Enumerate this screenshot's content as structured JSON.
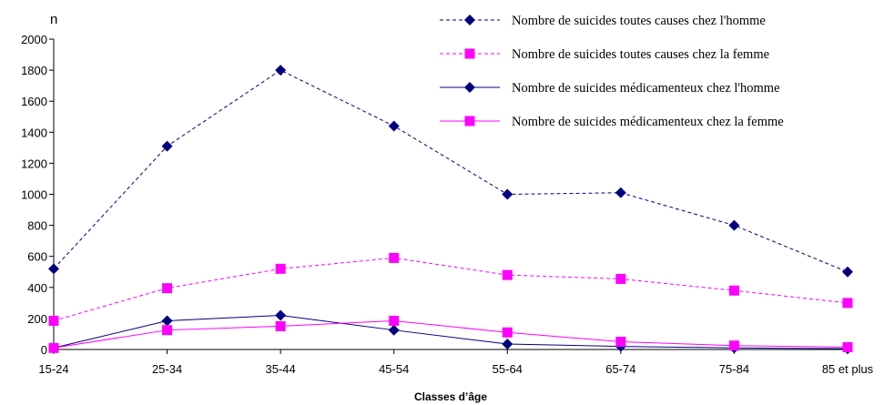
{
  "chart_data": {
    "type": "line",
    "title": "",
    "ylabel": "n",
    "xlabel": "Classes d’âge",
    "ylim": [
      0,
      2000
    ],
    "yticks": [
      0,
      200,
      400,
      600,
      800,
      1000,
      1200,
      1400,
      1600,
      1800,
      2000
    ],
    "grid": false,
    "legend_position": "top-right",
    "categories": [
      "15-24",
      "25-34",
      "35-44",
      "45-54",
      "55-64",
      "65-74",
      "75-84",
      "85 et plus"
    ],
    "series": [
      {
        "name": "Nombre de suicides toutes causes chez l'homme",
        "color": "#000080",
        "line_style": "dashed",
        "marker": "diamond",
        "values": [
          520,
          1310,
          1800,
          1440,
          1000,
          1010,
          800,
          500
        ]
      },
      {
        "name": "Nombre de suicides toutes causes chez la femme",
        "color": "#ff00ff",
        "line_style": "dashed",
        "marker": "square",
        "values": [
          185,
          395,
          520,
          590,
          480,
          455,
          380,
          300
        ]
      },
      {
        "name": "Nombre de suicides médicamenteux chez l'homme",
        "color": "#000080",
        "line_style": "solid",
        "marker": "diamond",
        "values": [
          10,
          185,
          220,
          125,
          35,
          20,
          10,
          5
        ]
      },
      {
        "name": "Nombre de suicides médicamenteux chez la femme",
        "color": "#ff00ff",
        "line_style": "solid",
        "marker": "square",
        "values": [
          10,
          125,
          150,
          185,
          110,
          50,
          25,
          15
        ]
      }
    ]
  }
}
